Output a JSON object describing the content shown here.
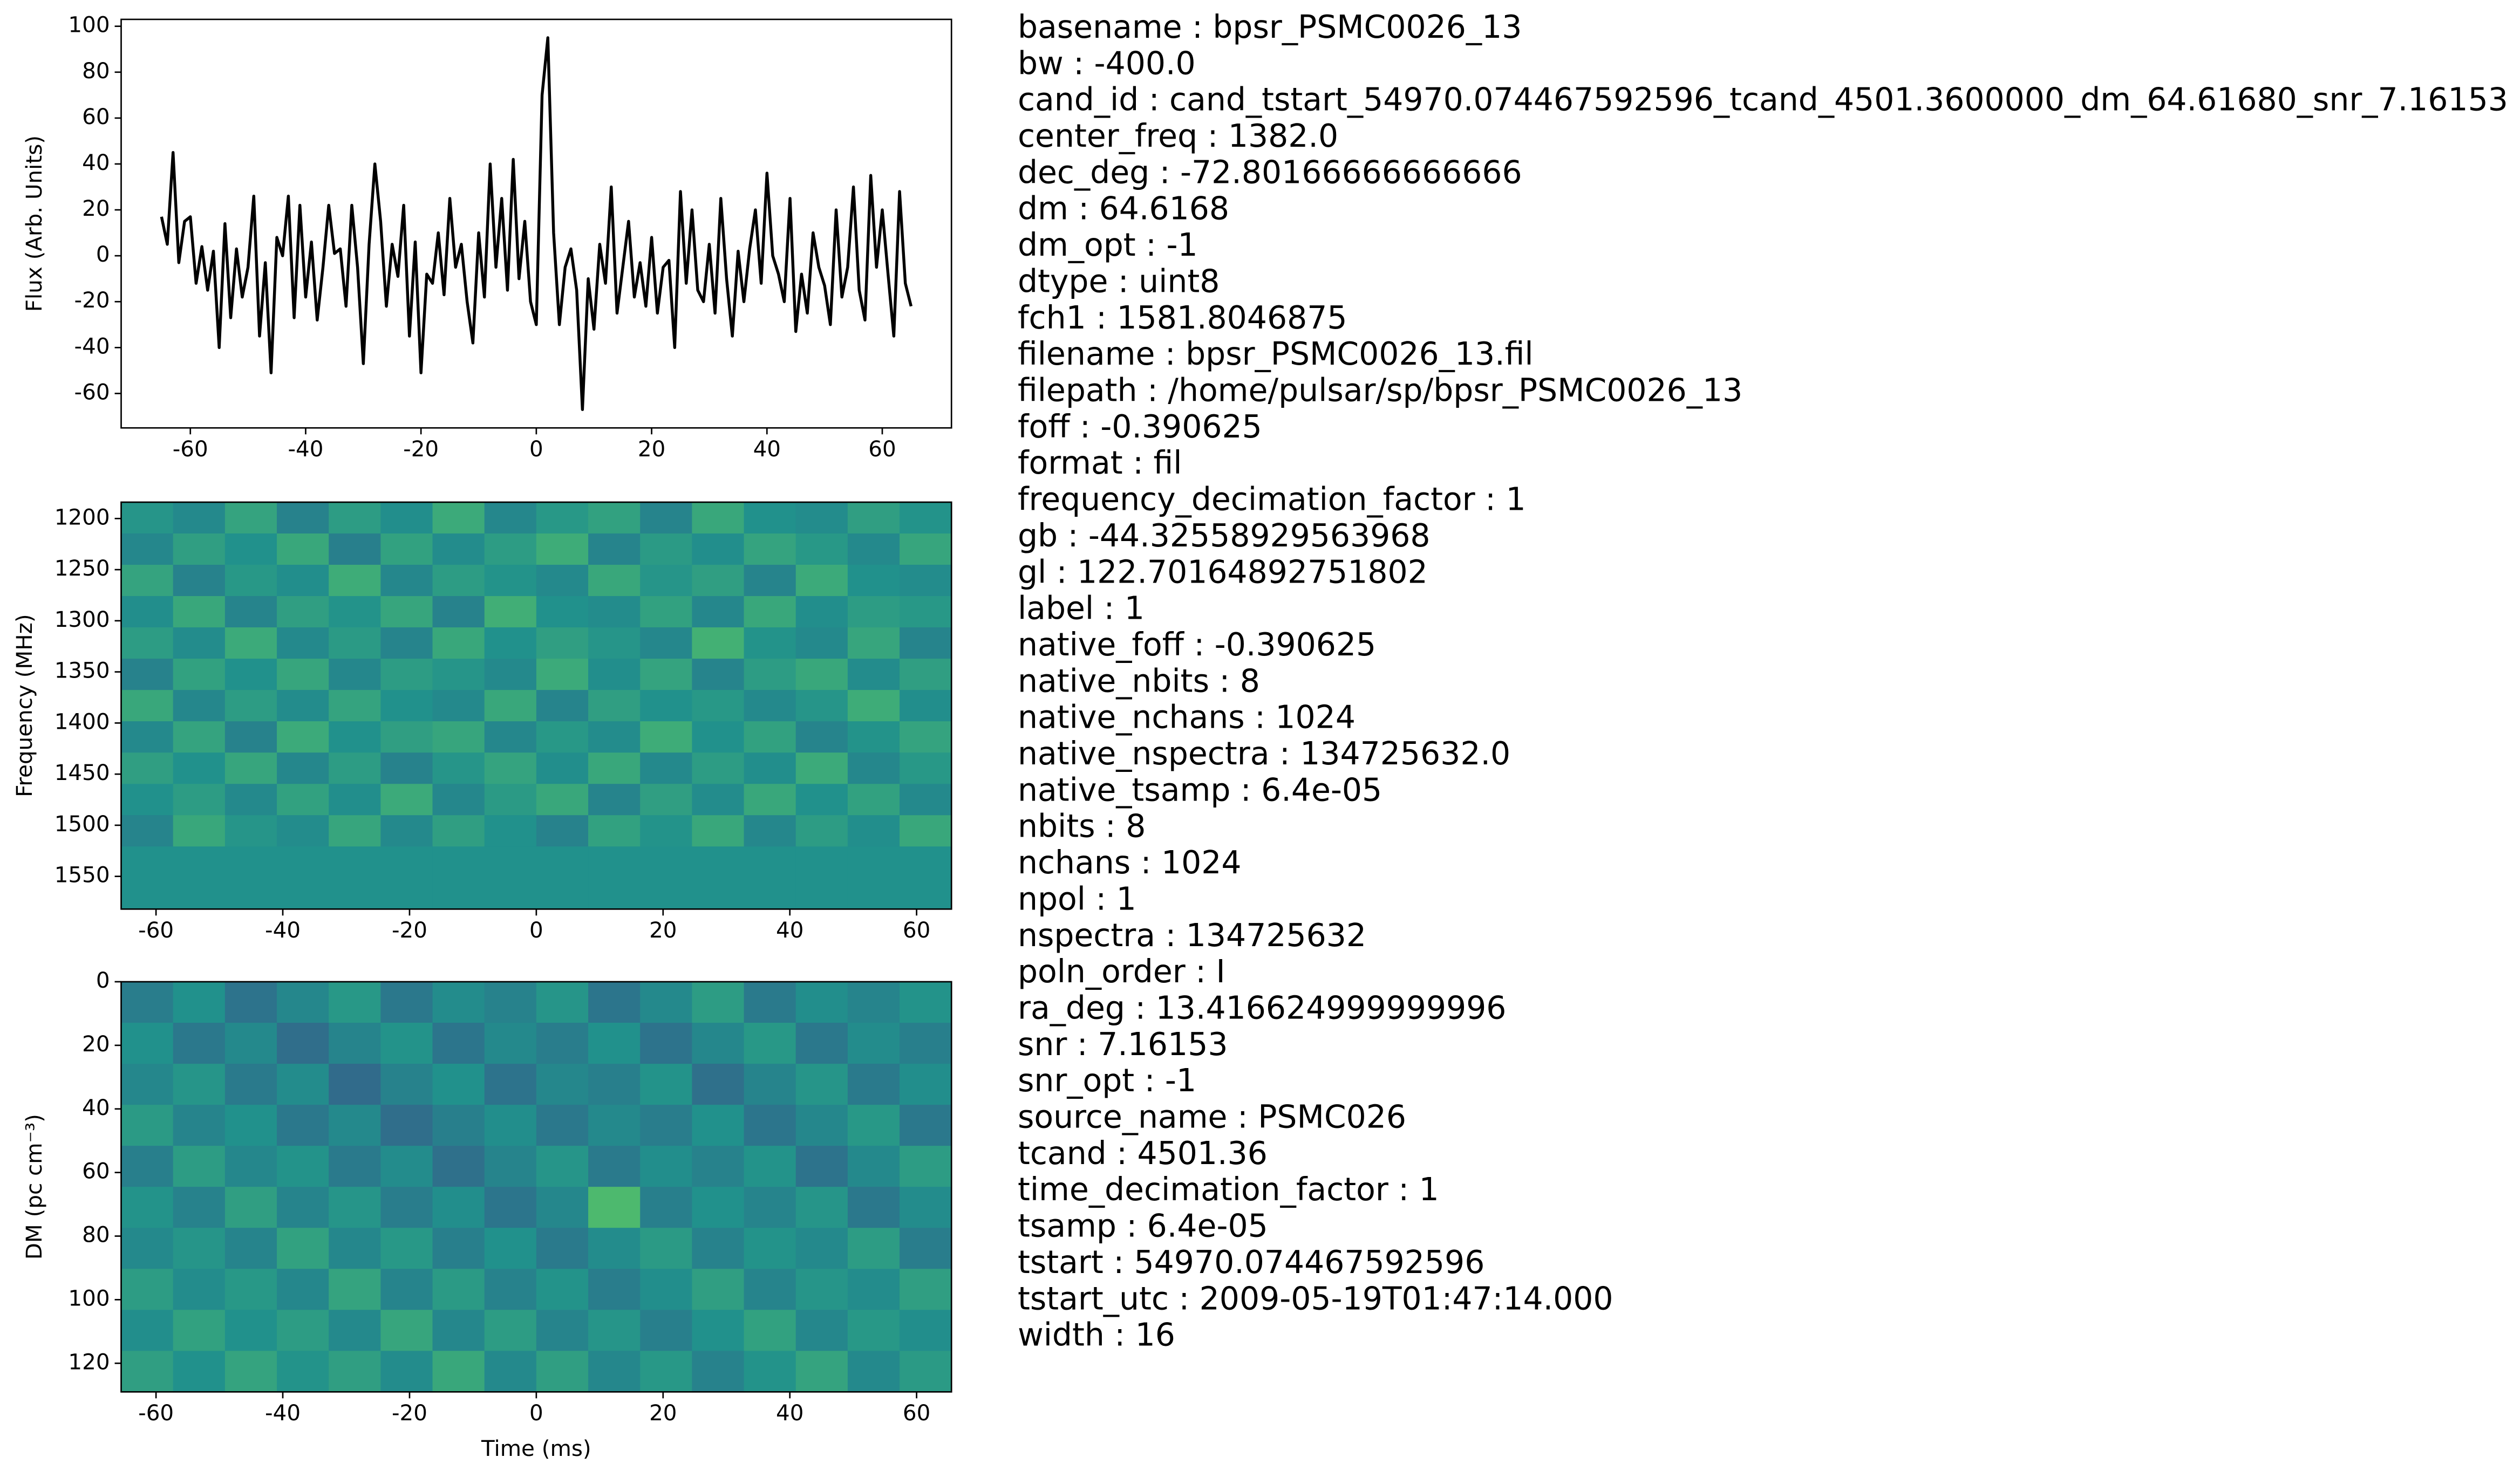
{
  "chart_data": [
    {
      "type": "line",
      "ylabel": "Flux (Arb. Units)",
      "color": "#000000",
      "x": [
        -65,
        -64,
        -63,
        -62,
        -61,
        -60,
        -59,
        -58,
        -57,
        -56,
        -55,
        -54,
        -53,
        -52,
        -51,
        -50,
        -49,
        -48,
        -47,
        -46,
        -45,
        -44,
        -43,
        -42,
        -41,
        -40,
        -39,
        -38,
        -37,
        -36,
        -35,
        -34,
        -33,
        -32,
        -31,
        -30,
        -29,
        -28,
        -27,
        -26,
        -25,
        -24,
        -23,
        -22,
        -21,
        -20,
        -19,
        -18,
        -17,
        -16,
        -15,
        -14,
        -13,
        -12,
        -11,
        -10,
        -9,
        -8,
        -7,
        -6,
        -5,
        -4,
        -3,
        -2,
        -1,
        0,
        1,
        2,
        3,
        4,
        5,
        6,
        7,
        8,
        9,
        10,
        11,
        12,
        13,
        14,
        15,
        16,
        17,
        18,
        19,
        20,
        21,
        22,
        23,
        24,
        25,
        26,
        27,
        28,
        29,
        30,
        31,
        32,
        33,
        34,
        35,
        36,
        37,
        38,
        39,
        40,
        41,
        42,
        43,
        44,
        45,
        46,
        47,
        48,
        49,
        50,
        51,
        52,
        53,
        54,
        55,
        56,
        57,
        58,
        59,
        60,
        61,
        62,
        63,
        64,
        65
      ],
      "values": [
        17,
        5,
        45,
        -3,
        15,
        17,
        -12,
        4,
        -15,
        2,
        -40,
        14,
        -27,
        3,
        -18,
        -5,
        26,
        -35,
        -3,
        -51,
        8,
        0,
        26,
        -27,
        22,
        -18,
        6,
        -28,
        -5,
        22,
        1,
        3,
        -22,
        22,
        -5,
        -47,
        5,
        40,
        15,
        -22,
        5,
        -9,
        22,
        -35,
        6,
        -51,
        -8,
        -12,
        10,
        -17,
        25,
        -5,
        5,
        -20,
        -38,
        10,
        -18,
        40,
        -5,
        25,
        -15,
        42,
        -10,
        15,
        -20,
        -30,
        70,
        95,
        10,
        -30,
        -5,
        3,
        -15,
        -67,
        -10,
        -32,
        5,
        -12,
        30,
        -25,
        -5,
        15,
        -18,
        -3,
        -22,
        8,
        -25,
        -5,
        -2,
        -40,
        28,
        -12,
        20,
        -15,
        -20,
        5,
        -25,
        25,
        -10,
        -35,
        2,
        -20,
        3,
        20,
        -12,
        36,
        0,
        -8,
        -20,
        25,
        -33,
        -8,
        -25,
        10,
        -5,
        -13,
        -30,
        20,
        -18,
        -5,
        30,
        -15,
        -28,
        35,
        -5,
        20,
        -8,
        -35,
        28,
        -12,
        -22
      ],
      "xlim": [
        -72,
        72
      ],
      "ylim": [
        -75,
        103
      ],
      "xticks": [
        -60,
        -40,
        -20,
        0,
        20,
        40,
        60
      ],
      "yticks": [
        -60,
        -40,
        -20,
        0,
        20,
        40,
        60,
        80,
        100
      ]
    },
    {
      "type": "heatmap",
      "ylabel": "Frequency (MHz)",
      "colormap": "viridis",
      "xlim": [
        -65.5,
        65.5
      ],
      "ylim": [
        1582,
        1184
      ],
      "xticks": [
        -60,
        -40,
        -20,
        0,
        20,
        40,
        60
      ],
      "yticks": [
        1200,
        1250,
        1300,
        1350,
        1400,
        1450,
        1500,
        1550
      ],
      "z": [
        [
          0.52,
          0.47,
          0.58,
          0.44,
          0.55,
          0.49,
          0.61,
          0.46,
          0.53,
          0.57,
          0.45,
          0.6,
          0.5,
          0.48,
          0.56,
          0.51
        ],
        [
          0.46,
          0.56,
          0.5,
          0.6,
          0.43,
          0.57,
          0.48,
          0.55,
          0.62,
          0.45,
          0.54,
          0.49,
          0.58,
          0.53,
          0.47,
          0.59
        ],
        [
          0.58,
          0.44,
          0.53,
          0.49,
          0.62,
          0.46,
          0.55,
          0.51,
          0.47,
          0.6,
          0.52,
          0.56,
          0.45,
          0.61,
          0.5,
          0.48
        ],
        [
          0.49,
          0.6,
          0.45,
          0.56,
          0.51,
          0.59,
          0.44,
          0.63,
          0.5,
          0.48,
          0.57,
          0.46,
          0.6,
          0.49,
          0.55,
          0.53
        ],
        [
          0.55,
          0.48,
          0.61,
          0.47,
          0.54,
          0.45,
          0.6,
          0.5,
          0.56,
          0.52,
          0.46,
          0.64,
          0.51,
          0.47,
          0.59,
          0.45
        ],
        [
          0.44,
          0.57,
          0.5,
          0.59,
          0.46,
          0.55,
          0.52,
          0.47,
          0.61,
          0.49,
          0.58,
          0.45,
          0.55,
          0.6,
          0.48,
          0.56
        ],
        [
          0.6,
          0.46,
          0.55,
          0.48,
          0.58,
          0.5,
          0.47,
          0.6,
          0.45,
          0.56,
          0.5,
          0.53,
          0.47,
          0.52,
          0.62,
          0.49
        ],
        [
          0.47,
          0.58,
          0.44,
          0.61,
          0.5,
          0.56,
          0.59,
          0.46,
          0.53,
          0.48,
          0.62,
          0.5,
          0.57,
          0.45,
          0.51,
          0.58
        ],
        [
          0.56,
          0.5,
          0.59,
          0.46,
          0.55,
          0.44,
          0.52,
          0.58,
          0.49,
          0.6,
          0.47,
          0.55,
          0.49,
          0.61,
          0.46,
          0.53
        ],
        [
          0.5,
          0.55,
          0.47,
          0.57,
          0.49,
          0.61,
          0.46,
          0.54,
          0.6,
          0.45,
          0.56,
          0.48,
          0.6,
          0.5,
          0.57,
          0.47
        ],
        [
          0.45,
          0.6,
          0.52,
          0.48,
          0.59,
          0.47,
          0.56,
          0.5,
          0.44,
          0.57,
          0.51,
          0.6,
          0.46,
          0.55,
          0.49,
          0.6
        ],
        [
          0.5,
          0.5,
          0.5,
          0.5,
          0.5,
          0.5,
          0.5,
          0.5,
          0.5,
          0.5,
          0.5,
          0.5,
          0.5,
          0.5,
          0.5,
          0.5
        ],
        [
          0.5,
          0.5,
          0.5,
          0.5,
          0.5,
          0.5,
          0.5,
          0.5,
          0.5,
          0.5,
          0.5,
          0.5,
          0.5,
          0.5,
          0.5,
          0.5
        ]
      ]
    },
    {
      "type": "heatmap",
      "ylabel": "DM (pc cm⁻³)",
      "xlabel": "Time (ms)",
      "colormap": "viridis",
      "xlim": [
        -65.5,
        65.5
      ],
      "ylim": [
        129,
        0
      ],
      "xticks": [
        -60,
        -40,
        -20,
        0,
        20,
        40,
        60
      ],
      "yticks": [
        0,
        20,
        40,
        60,
        80,
        100,
        120
      ],
      "z": [
        [
          0.42,
          0.5,
          0.38,
          0.46,
          0.53,
          0.4,
          0.48,
          0.44,
          0.52,
          0.39,
          0.47,
          0.55,
          0.41,
          0.49,
          0.45,
          0.51
        ],
        [
          0.5,
          0.4,
          0.47,
          0.36,
          0.45,
          0.51,
          0.39,
          0.47,
          0.42,
          0.5,
          0.38,
          0.46,
          0.53,
          0.4,
          0.48,
          0.43
        ],
        [
          0.46,
          0.52,
          0.41,
          0.48,
          0.35,
          0.44,
          0.5,
          0.38,
          0.46,
          0.43,
          0.51,
          0.37,
          0.45,
          0.52,
          0.41,
          0.49
        ],
        [
          0.54,
          0.45,
          0.5,
          0.4,
          0.47,
          0.36,
          0.43,
          0.49,
          0.4,
          0.47,
          0.42,
          0.5,
          0.39,
          0.46,
          0.53,
          0.4
        ],
        [
          0.43,
          0.55,
          0.46,
          0.51,
          0.41,
          0.48,
          0.37,
          0.45,
          0.52,
          0.41,
          0.49,
          0.44,
          0.51,
          0.38,
          0.47,
          0.55
        ],
        [
          0.51,
          0.44,
          0.56,
          0.45,
          0.52,
          0.42,
          0.49,
          0.39,
          0.46,
          0.68,
          0.43,
          0.5,
          0.45,
          0.52,
          0.4,
          0.48
        ],
        [
          0.47,
          0.52,
          0.45,
          0.57,
          0.46,
          0.53,
          0.43,
          0.5,
          0.41,
          0.48,
          0.54,
          0.44,
          0.51,
          0.47,
          0.55,
          0.42
        ],
        [
          0.55,
          0.48,
          0.53,
          0.46,
          0.58,
          0.45,
          0.54,
          0.44,
          0.51,
          0.42,
          0.49,
          0.56,
          0.45,
          0.52,
          0.48,
          0.56
        ],
        [
          0.49,
          0.57,
          0.5,
          0.55,
          0.47,
          0.59,
          0.46,
          0.55,
          0.45,
          0.52,
          0.43,
          0.5,
          0.57,
          0.46,
          0.53,
          0.49
        ],
        [
          0.56,
          0.5,
          0.58,
          0.51,
          0.56,
          0.48,
          0.6,
          0.47,
          0.56,
          0.46,
          0.53,
          0.44,
          0.51,
          0.58,
          0.47,
          0.54
        ]
      ]
    }
  ],
  "info": [
    "basename : bpsr_PSMC0026_13",
    "bw : -400.0",
    "cand_id : cand_tstart_54970.074467592596_tcand_4501.3600000_dm_64.61680_snr_7.16153",
    "center_freq : 1382.0",
    "dec_deg : -72.80166666666666",
    "dm : 64.6168",
    "dm_opt : -1",
    "dtype : uint8",
    "fch1 : 1581.8046875",
    "filename : bpsr_PSMC0026_13.fil",
    "filepath : /home/pulsar/sp/bpsr_PSMC0026_13",
    "foff : -0.390625",
    "format : fil",
    "frequency_decimation_factor : 1",
    "gb : -44.32558929563968",
    "gl : 122.70164892751802",
    "label : 1",
    "native_foff : -0.390625",
    "native_nbits : 8",
    "native_nchans : 1024",
    "native_nspectra : 134725632.0",
    "native_tsamp : 6.4e-05",
    "nbits : 8",
    "nchans : 1024",
    "npol : 1",
    "nspectra : 134725632",
    "poln_order : I",
    "ra_deg : 13.416624999999996",
    "snr : 7.16153",
    "snr_opt : -1",
    "source_name : PSMC026",
    "tcand : 4501.36",
    "time_decimation_factor : 1",
    "tsamp : 6.4e-05",
    "tstart : 54970.074467592596",
    "tstart_utc : 2009-05-19T01:47:14.000",
    "width : 16"
  ]
}
